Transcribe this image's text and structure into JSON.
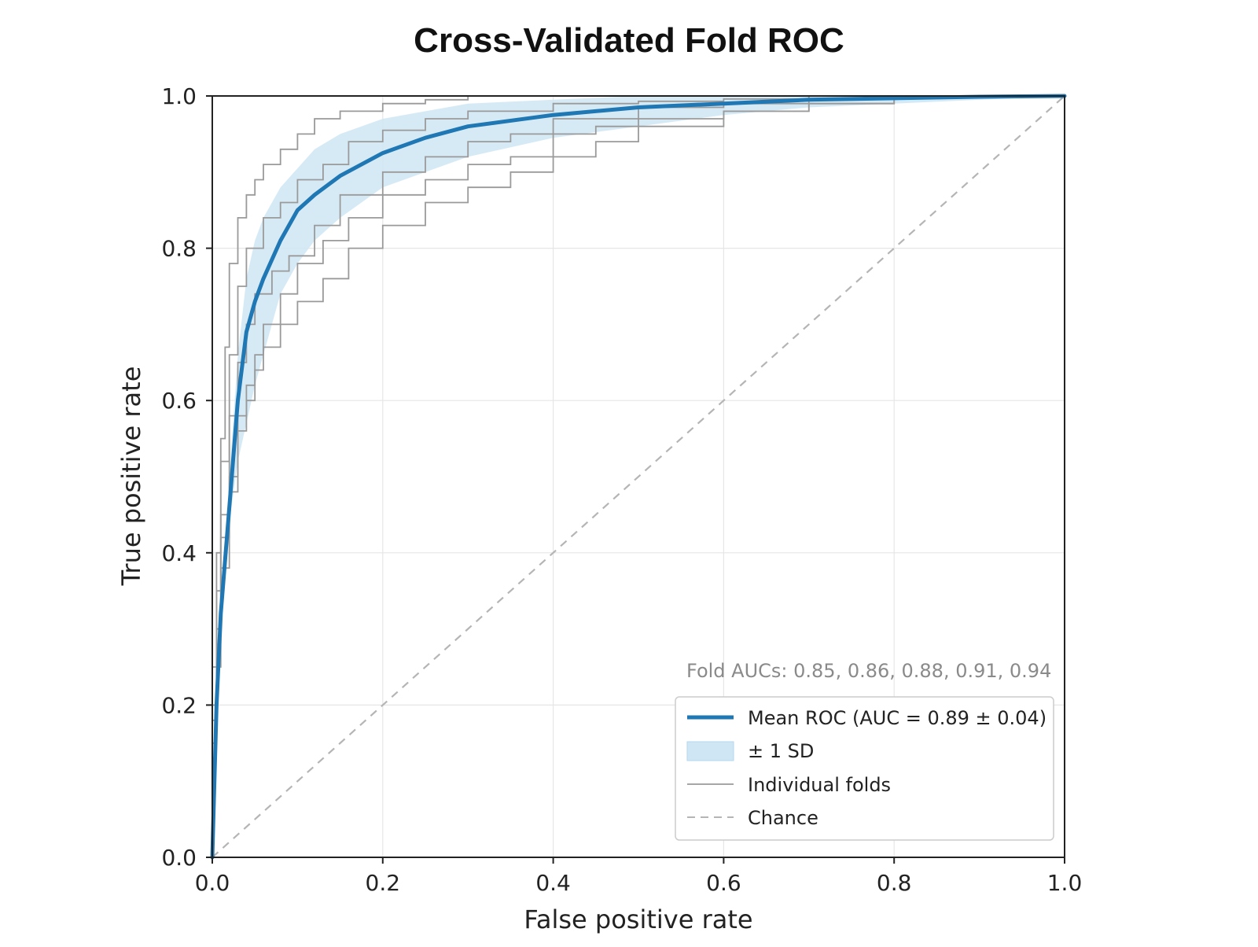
{
  "chart_data": {
    "type": "line",
    "title": "Cross-Validated Fold ROC",
    "xlabel": "False positive rate",
    "ylabel": "True positive rate",
    "xlim": [
      0.0,
      1.0
    ],
    "ylim": [
      0.0,
      1.0
    ],
    "xticks": [
      "0.0",
      "0.2",
      "0.4",
      "0.6",
      "0.8",
      "1.0"
    ],
    "yticks": [
      "0.0",
      "0.2",
      "0.4",
      "0.6",
      "0.8",
      "1.0"
    ],
    "grid": true,
    "legend_position": "lower-right",
    "annotation": "Fold AUCs: 0.85, 0.86, 0.88, 0.91, 0.94",
    "fold_aucs": [
      0.85,
      0.86,
      0.88,
      0.91,
      0.94
    ],
    "colors": {
      "mean": "#1f77b4",
      "band": "#cfe6f5",
      "folds": "#9a9a9a",
      "chance": "#b5b5b5",
      "grid": "#e6e6e6",
      "axis": "#222222"
    },
    "legend": [
      {
        "label": "Mean ROC (AUC = 0.89 ± 0.04)",
        "kind": "line"
      },
      {
        "label": "± 1 SD",
        "kind": "band"
      },
      {
        "label": "Individual folds",
        "kind": "thin"
      },
      {
        "label": "Chance",
        "kind": "dashed"
      }
    ],
    "series": [
      {
        "name": "Mean ROC (AUC = 0.89 ± 0.04)",
        "kind": "mean",
        "x": [
          0,
          0.005,
          0.01,
          0.02,
          0.03,
          0.04,
          0.05,
          0.06,
          0.08,
          0.1,
          0.12,
          0.15,
          0.2,
          0.25,
          0.3,
          0.4,
          0.5,
          0.6,
          0.7,
          0.8,
          0.9,
          1.0
        ],
        "y": [
          0,
          0.2,
          0.32,
          0.46,
          0.6,
          0.69,
          0.73,
          0.76,
          0.81,
          0.85,
          0.87,
          0.895,
          0.925,
          0.945,
          0.96,
          0.975,
          0.985,
          0.99,
          0.995,
          0.997,
          0.999,
          1.0
        ]
      },
      {
        "name": "± 1 SD",
        "kind": "band",
        "x": [
          0.02,
          0.03,
          0.04,
          0.05,
          0.06,
          0.08,
          0.1,
          0.12,
          0.15,
          0.2,
          0.25,
          0.3,
          0.4,
          0.5,
          0.6,
          0.7,
          0.8,
          1.0
        ],
        "lower": [
          0.44,
          0.52,
          0.57,
          0.62,
          0.66,
          0.74,
          0.78,
          0.81,
          0.84,
          0.88,
          0.9,
          0.92,
          0.945,
          0.96,
          0.975,
          0.985,
          0.99,
          1.0
        ],
        "upper": [
          0.5,
          0.66,
          0.76,
          0.81,
          0.84,
          0.88,
          0.905,
          0.93,
          0.95,
          0.97,
          0.98,
          0.99,
          0.995,
          1.0,
          1.0,
          1.0,
          1.0,
          1.0
        ]
      },
      {
        "kind": "fold",
        "x": [
          0,
          0.005,
          0.01,
          0.015,
          0.02,
          0.03,
          0.04,
          0.05,
          0.06,
          0.08,
          0.1,
          0.12,
          0.15,
          0.2,
          0.25,
          0.3,
          0.4,
          0.5,
          0.6,
          0.7,
          1.0
        ],
        "y": [
          0,
          0.25,
          0.4,
          0.55,
          0.67,
          0.78,
          0.84,
          0.87,
          0.89,
          0.91,
          0.93,
          0.95,
          0.97,
          0.98,
          0.99,
          0.995,
          1.0,
          1.0,
          1.0,
          1.0,
          1.0
        ]
      },
      {
        "kind": "fold",
        "x": [
          0,
          0.005,
          0.01,
          0.02,
          0.03,
          0.04,
          0.06,
          0.08,
          0.1,
          0.13,
          0.16,
          0.2,
          0.25,
          0.3,
          0.4,
          0.5,
          0.6,
          0.7,
          0.8,
          1.0
        ],
        "y": [
          0,
          0.2,
          0.35,
          0.52,
          0.66,
          0.75,
          0.8,
          0.84,
          0.86,
          0.89,
          0.91,
          0.94,
          0.955,
          0.97,
          0.98,
          0.99,
          0.993,
          0.996,
          1.0,
          1.0
        ]
      },
      {
        "kind": "fold",
        "x": [
          0,
          0.005,
          0.01,
          0.02,
          0.03,
          0.04,
          0.05,
          0.07,
          0.09,
          0.12,
          0.15,
          0.2,
          0.25,
          0.3,
          0.35,
          0.4,
          0.5,
          0.6,
          0.7,
          0.8,
          1.0
        ],
        "y": [
          0,
          0.18,
          0.3,
          0.45,
          0.58,
          0.65,
          0.7,
          0.74,
          0.77,
          0.79,
          0.83,
          0.87,
          0.9,
          0.92,
          0.94,
          0.95,
          0.97,
          0.985,
          0.99,
          1.0,
          1.0
        ]
      },
      {
        "kind": "fold",
        "x": [
          0,
          0.005,
          0.01,
          0.02,
          0.03,
          0.04,
          0.05,
          0.06,
          0.08,
          0.1,
          0.13,
          0.16,
          0.2,
          0.25,
          0.3,
          0.35,
          0.4,
          0.45,
          0.5,
          0.6,
          0.7,
          0.8,
          1.0
        ],
        "y": [
          0,
          0.2,
          0.3,
          0.42,
          0.5,
          0.58,
          0.62,
          0.66,
          0.7,
          0.74,
          0.78,
          0.81,
          0.84,
          0.87,
          0.89,
          0.91,
          0.92,
          0.95,
          0.96,
          0.97,
          0.98,
          0.99,
          1.0
        ]
      },
      {
        "kind": "fold",
        "x": [
          0,
          0.005,
          0.01,
          0.02,
          0.03,
          0.04,
          0.05,
          0.06,
          0.08,
          0.1,
          0.13,
          0.16,
          0.2,
          0.25,
          0.3,
          0.35,
          0.4,
          0.45,
          0.5,
          0.6,
          0.7,
          0.8,
          1.0
        ],
        "y": [
          0,
          0.15,
          0.25,
          0.38,
          0.48,
          0.56,
          0.6,
          0.64,
          0.67,
          0.7,
          0.73,
          0.76,
          0.8,
          0.83,
          0.86,
          0.88,
          0.9,
          0.92,
          0.94,
          0.96,
          0.98,
          0.99,
          1.0
        ]
      },
      {
        "name": "Chance",
        "kind": "chance",
        "x": [
          0,
          1
        ],
        "y": [
          0,
          1
        ]
      }
    ]
  }
}
